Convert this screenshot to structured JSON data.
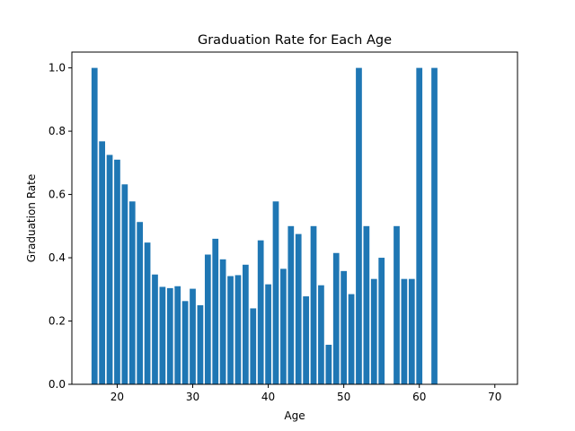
{
  "chart_data": {
    "type": "bar",
    "title": "Graduation Rate for Each Age",
    "xlabel": "Age",
    "ylabel": "Graduation Rate",
    "xlim": [
      14,
      73
    ],
    "ylim": [
      0,
      1.05
    ],
    "xticks": [
      20,
      30,
      40,
      50,
      60,
      70
    ],
    "yticks": [
      0.0,
      0.2,
      0.4,
      0.6,
      0.8,
      1.0
    ],
    "xtick_labels": [
      "20",
      "30",
      "40",
      "50",
      "60",
      "70"
    ],
    "ytick_labels": [
      "0.0",
      "0.2",
      "0.4",
      "0.6",
      "0.8",
      "1.0"
    ],
    "bar_color": "#1f77b4",
    "grid": false,
    "x": [
      17,
      18,
      19,
      20,
      21,
      22,
      23,
      24,
      25,
      26,
      27,
      28,
      29,
      30,
      31,
      32,
      33,
      34,
      35,
      36,
      37,
      38,
      39,
      40,
      41,
      42,
      43,
      44,
      45,
      46,
      47,
      48,
      49,
      50,
      51,
      52,
      53,
      54,
      55,
      57,
      58,
      59,
      60,
      62
    ],
    "values": [
      1.0,
      0.768,
      0.725,
      0.71,
      0.632,
      0.578,
      0.513,
      0.448,
      0.347,
      0.308,
      0.304,
      0.31,
      0.263,
      0.302,
      0.25,
      0.41,
      0.46,
      0.395,
      0.342,
      0.345,
      0.378,
      0.24,
      0.455,
      0.316,
      0.578,
      0.365,
      0.5,
      0.475,
      0.278,
      0.5,
      0.313,
      0.125,
      0.415,
      0.358,
      0.285,
      1.0,
      0.5,
      0.333,
      0.4,
      0.5,
      0.333,
      0.333,
      1.0,
      1.0
    ]
  }
}
